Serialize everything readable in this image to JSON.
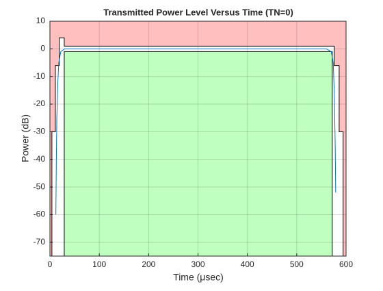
{
  "chart_data": {
    "type": "line",
    "title": "Transmitted Power Level Versus Time (TN=0)",
    "x_label": "Time  (μsec)",
    "y_label": "Power (dB)",
    "xlim": [
      0,
      600
    ],
    "ylim": [
      -75,
      10
    ],
    "xticks": [
      0,
      100,
      200,
      300,
      400,
      500,
      600
    ],
    "yticks": [
      -70,
      -60,
      -50,
      -40,
      -30,
      -20,
      -10,
      0,
      10
    ],
    "grid": true,
    "series": [
      {
        "color": "#000000",
        "fill": "#ffbfbf",
        "fill_side": "above",
        "x": [
          4,
          4,
          11,
          11,
          19,
          19,
          29,
          29,
          576,
          576,
          586,
          586,
          594,
          594
        ],
        "values": [
          -75,
          -30,
          -30,
          -6,
          -6,
          4,
          4,
          1,
          1,
          -6,
          -6,
          -30,
          -30,
          -75
        ]
      },
      {
        "color": "#000000",
        "fill": "#bfffbf",
        "fill_side": "below",
        "x": [
          29,
          29,
          572,
          572
        ],
        "values": [
          -75,
          -1,
          -1,
          -75
        ]
      },
      {
        "color": "#0072bd",
        "x": [
          12,
          13,
          14,
          16,
          18,
          22,
          30,
          560,
          570,
          574,
          576,
          578,
          579
        ],
        "values": [
          -60,
          -40,
          -25,
          -12,
          -5,
          -1,
          0,
          0,
          -1,
          -5,
          -15,
          -35,
          -52
        ]
      }
    ]
  }
}
